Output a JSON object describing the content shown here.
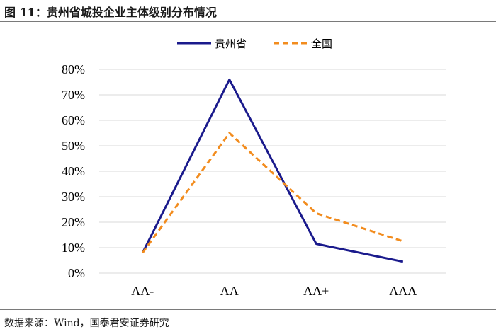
{
  "figure": {
    "title": "图 11：贵州省城投企业主体级别分布情况",
    "source": "数据来源：Wind，国泰君安证券研究"
  },
  "chart_data": {
    "type": "line",
    "categories": [
      "AA-",
      "AA",
      "AA+",
      "AAA"
    ],
    "series": [
      {
        "name": "贵州省",
        "values": [
          8,
          76,
          11.5,
          4.5
        ],
        "color": "#1a1a8c",
        "style": "solid"
      },
      {
        "name": "全国",
        "values": [
          8,
          55,
          23.5,
          12.5
        ],
        "color": "#f28c1e",
        "style": "dashed"
      }
    ],
    "yticks": [
      "0%",
      "10%",
      "20%",
      "30%",
      "40%",
      "50%",
      "60%",
      "70%",
      "80%"
    ],
    "ylim": [
      0,
      80
    ],
    "grid": true,
    "legend": "top-center"
  }
}
